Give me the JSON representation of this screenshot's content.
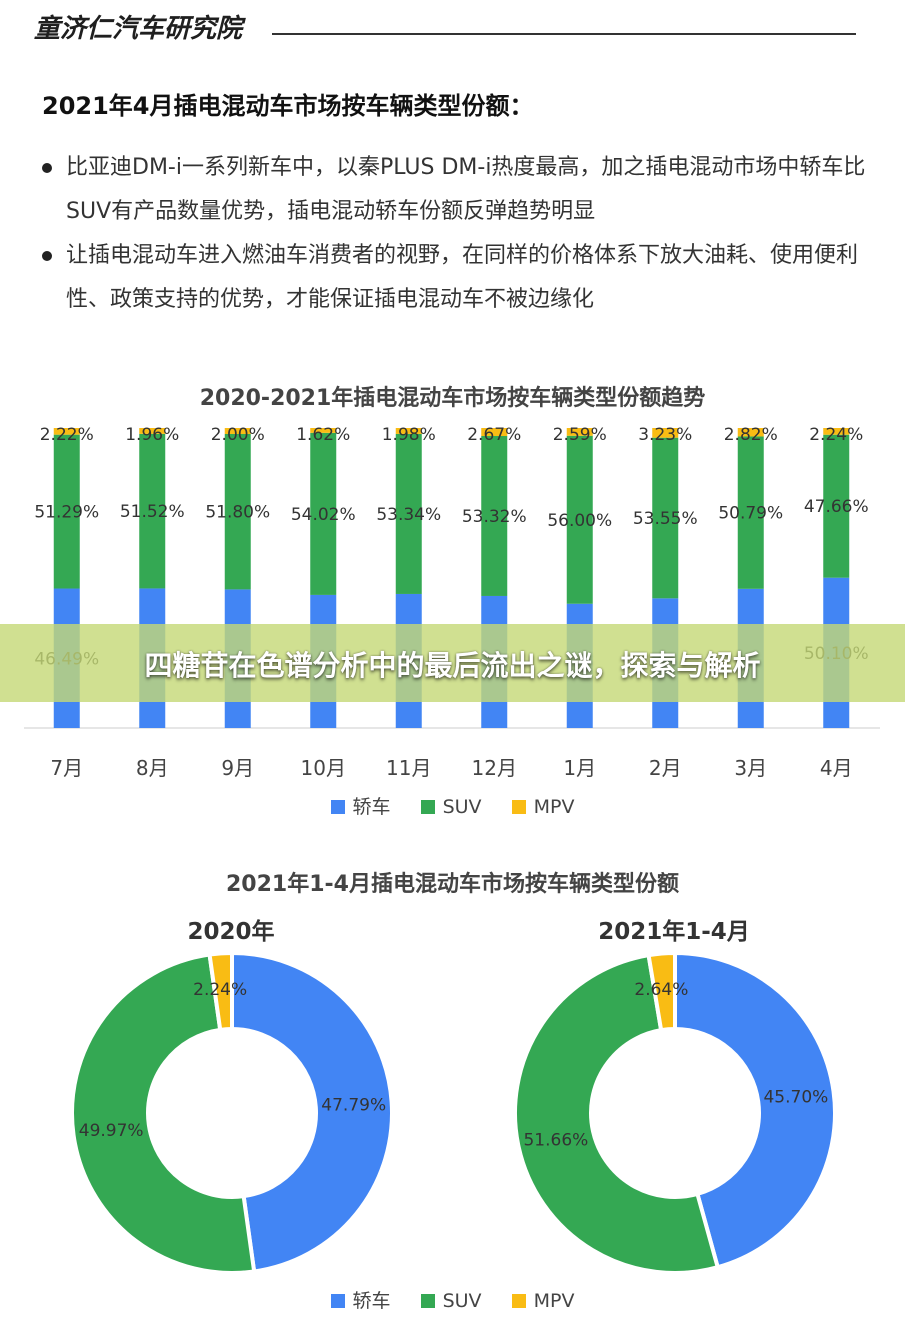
{
  "header": {
    "brand": "童济仁汽车研究院"
  },
  "section_title": "2021年4月插电混动车市场按车辆类型份额：",
  "bullets": [
    "比亚迪DM-i一系列新车中，以秦PLUS DM-i热度最高，加之插电混动市场中轿车比SUV有产品数量优势，插电混动轿车份额反弹趋势明显",
    "让插电混动车进入燃油车消费者的视野，在同样的价格体系下放大油耗、使用便利性、政策支持的优势，才能保证插电混动车不被边缘化"
  ],
  "overlay_text": "四糖苷在色谱分析中的最后流出之谜，探索与解析",
  "legend": [
    {
      "label": "轿车",
      "color": "#4285F4"
    },
    {
      "label": "SUV",
      "color": "#34A853"
    },
    {
      "label": "MPV",
      "color": "#F9BC14"
    }
  ],
  "chart_data": [
    {
      "type": "bar",
      "stacked": true,
      "title": "2020-2021年插电混动车市场按车辆类型份额趋势",
      "categories": [
        "7月",
        "8月",
        "9月",
        "10月",
        "11月",
        "12月",
        "1月",
        "2月",
        "3月",
        "4月"
      ],
      "series": [
        {
          "name": "轿车",
          "color": "#4285F4",
          "values": [
            46.49,
            46.52,
            46.2,
            44.36,
            44.68,
            44.01,
            41.41,
            43.22,
            46.39,
            50.1
          ],
          "labels": [
            "46.49%",
            "",
            "",
            "",
            "",
            "",
            "",
            "",
            "",
            "50.10%"
          ]
        },
        {
          "name": "SUV",
          "color": "#34A853",
          "values": [
            51.29,
            51.52,
            51.8,
            54.02,
            53.34,
            53.32,
            56.0,
            53.55,
            50.79,
            47.66
          ],
          "labels": [
            "51.29%",
            "51.52%",
            "51.80%",
            "54.02%",
            "53.34%",
            "53.32%",
            "56.00%",
            "53.55%",
            "50.79%",
            "47.66%"
          ]
        },
        {
          "name": "MPV",
          "color": "#F9BC14",
          "values": [
            2.22,
            1.96,
            2.0,
            1.62,
            1.98,
            2.67,
            2.59,
            3.23,
            2.82,
            2.24
          ],
          "labels": [
            "2.22%",
            "1.96%",
            "2.00%",
            "1.62%",
            "1.98%",
            "2.67%",
            "2.59%",
            "3.23%",
            "2.82%",
            "2.24%"
          ]
        }
      ],
      "ylim": [
        0,
        100
      ],
      "legend_position": "bottom"
    },
    {
      "type": "pie",
      "donut": true,
      "title": "2021年1-4月插电混动车市场按车辆类型份额",
      "charts": [
        {
          "subtitle": "2020年",
          "slices": [
            {
              "name": "轿车",
              "value": 47.79,
              "label": "47.79%"
            },
            {
              "name": "SUV",
              "value": 49.97,
              "label": "49.97%"
            },
            {
              "name": "MPV",
              "value": 2.24,
              "label": "2.24%"
            }
          ]
        },
        {
          "subtitle": "2021年1-4月",
          "slices": [
            {
              "name": "轿车",
              "value": 45.7,
              "label": "45.70%"
            },
            {
              "name": "SUV",
              "value": 51.66,
              "label": "51.66%"
            },
            {
              "name": "MPV",
              "value": 2.64,
              "label": "2.64%"
            }
          ]
        }
      ],
      "legend_position": "bottom"
    }
  ]
}
